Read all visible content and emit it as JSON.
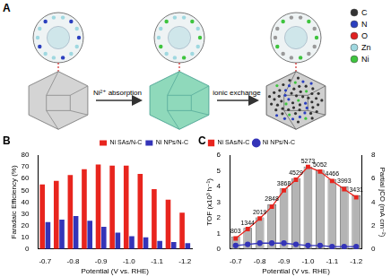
{
  "diagram": {
    "panel": "A",
    "steps": [
      "Ni²⁺ absorption",
      "ionic exchange"
    ],
    "legend": [
      {
        "label": "C",
        "color": "#333333"
      },
      {
        "label": "N",
        "color": "#2b3fbf"
      },
      {
        "label": "O",
        "color": "#e02020"
      },
      {
        "label": "Zn",
        "color": "#9fd8e0"
      },
      {
        "label": "Ni",
        "color": "#3ec43e"
      }
    ]
  },
  "chart_data": [
    {
      "panel": "B",
      "type": "bar",
      "categories": [
        "-0.7",
        null,
        "-0.8",
        null,
        "-0.9",
        null,
        "-1.0",
        null,
        "-1.1",
        null,
        "-1.2"
      ],
      "series": [
        {
          "name": "Ni SAs/N-C",
          "color": "#e8251e",
          "values": [
            55,
            58,
            63,
            68,
            72,
            71,
            71,
            64,
            51,
            42,
            31
          ]
        },
        {
          "name": "Ni NPs/N-C",
          "color": "#3434b8",
          "values": [
            23,
            25,
            28,
            24,
            19,
            14,
            11,
            10,
            7,
            6,
            5
          ]
        }
      ],
      "x_label": "Potential (V vs. RHE)",
      "y_label": "Faradaic Efficiency (%)",
      "ylim": [
        0,
        80
      ],
      "yticks": [
        0,
        10,
        20,
        30,
        40,
        50,
        60,
        70,
        80
      ],
      "legend": "top-right",
      "grid": false
    },
    {
      "panel": "C",
      "type": "bar",
      "categories": [
        "-0.7",
        null,
        "-0.8",
        null,
        "-0.9",
        null,
        "-1.0",
        null,
        "-1.1",
        null,
        "-1.2"
      ],
      "series": [
        {
          "type": "bar",
          "color": "#b4b4b4",
          "values": [
            0.803,
            1.344,
            2.019,
            2.848,
            3.868,
            4.529,
            5.273,
            5.052,
            4.466,
            3.993,
            3.431
          ],
          "value_labels": [
            "803",
            "1344",
            "2019",
            "2848",
            "3868",
            "4529",
            "5273",
            "5052",
            "4466",
            "3993",
            "3431"
          ]
        },
        {
          "name": "Ni SAs/N-C",
          "type": "line",
          "marker": "square",
          "color": "#e8251e",
          "axis": "y2",
          "values": [
            0.9,
            1.7,
            2.6,
            3.6,
            5.0,
            5.9,
            7.0,
            6.6,
            5.8,
            5.1,
            4.4
          ]
        },
        {
          "name": "Ni NPs/N-C",
          "type": "line",
          "marker": "circle",
          "color": "#3434b8",
          "axis": "y2",
          "values": [
            0.3,
            0.4,
            0.5,
            0.5,
            0.5,
            0.4,
            0.3,
            0.3,
            0.2,
            0.2,
            0.2
          ]
        }
      ],
      "data_labels": true,
      "x_label": "Potential (V vs. RHE)",
      "y_label": "TOF (x10³ h⁻¹)",
      "y2_label": "Partial jCO (mA cm⁻²)",
      "ylim": [
        0,
        6
      ],
      "yticks": [
        0,
        1,
        2,
        3,
        4,
        5,
        6
      ],
      "y2lim": [
        0,
        8
      ],
      "y2ticks": [
        0,
        2,
        4,
        6,
        8
      ],
      "legend": "top-left",
      "grid": false
    }
  ]
}
